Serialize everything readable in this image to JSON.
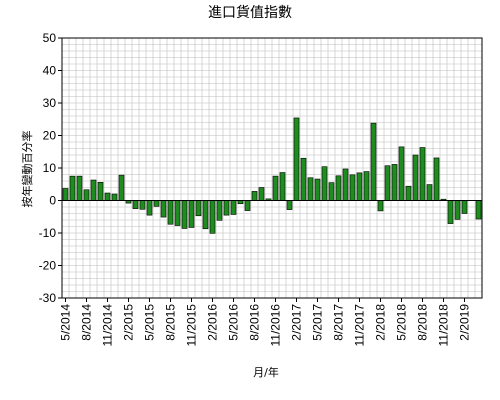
{
  "chart_data": {
    "type": "bar",
    "title": "進口貨值指數",
    "xlabel": "月/年",
    "ylabel": "按年變動百分率",
    "ylim": [
      -30,
      50
    ],
    "yticks": [
      -30,
      -20,
      -10,
      0,
      10,
      20,
      30,
      40,
      50
    ],
    "grid": true,
    "legend": "none",
    "categories": [
      "5/2014",
      "6/2014",
      "7/2014",
      "8/2014",
      "9/2014",
      "10/2014",
      "11/2014",
      "12/2014",
      "1/2015",
      "2/2015",
      "3/2015",
      "4/2015",
      "5/2015",
      "6/2015",
      "7/2015",
      "8/2015",
      "9/2015",
      "10/2015",
      "11/2015",
      "12/2015",
      "1/2016",
      "2/2016",
      "3/2016",
      "4/2016",
      "5/2016",
      "6/2016",
      "7/2016",
      "8/2016",
      "9/2016",
      "10/2016",
      "11/2016",
      "12/2016",
      "1/2017",
      "2/2017",
      "3/2017",
      "4/2017",
      "5/2017",
      "6/2017",
      "7/2017",
      "8/2017",
      "9/2017",
      "10/2017",
      "11/2017",
      "12/2017",
      "1/2018",
      "2/2018",
      "3/2018",
      "4/2018",
      "5/2018",
      "6/2018",
      "7/2018",
      "8/2018",
      "9/2018",
      "10/2018",
      "11/2018",
      "12/2018",
      "1/2019",
      "2/2019",
      "3/2019",
      "4/2019"
    ],
    "xtick_labels": [
      "5/2014",
      "8/2014",
      "11/2014",
      "2/2015",
      "5/2015",
      "8/2015",
      "11/2015",
      "2/2016",
      "5/2016",
      "8/2016",
      "11/2016",
      "2/2017",
      "5/2017",
      "8/2017",
      "11/2017",
      "2/2018",
      "5/2018",
      "8/2018",
      "11/2018",
      "2/2019"
    ],
    "values": [
      3.7,
      7.5,
      7.5,
      3.3,
      6.3,
      5.6,
      2.3,
      2.0,
      7.8,
      -0.8,
      -2.5,
      -2.7,
      -4.5,
      -1.8,
      -5.1,
      -7.3,
      -7.7,
      -8.6,
      -8.3,
      -4.7,
      -8.7,
      -10.1,
      -6.1,
      -4.5,
      -4.3,
      -1.0,
      -3.1,
      2.8,
      4.0,
      0.5,
      7.5,
      8.6,
      -2.8,
      25.4,
      13.0,
      7.0,
      6.6,
      10.4,
      5.5,
      7.6,
      9.7,
      7.9,
      8.5,
      8.9,
      23.8,
      -3.2,
      10.7,
      11.1,
      16.5,
      4.4,
      14.0,
      16.3,
      4.9,
      13.1,
      0.4,
      -7.1,
      -5.8,
      -4.0,
      0.0,
      -5.7
    ]
  },
  "colors": {
    "bar_fill": "#1e8c1e",
    "bar_stroke": "#000000",
    "grid": "#bdbdbd"
  }
}
